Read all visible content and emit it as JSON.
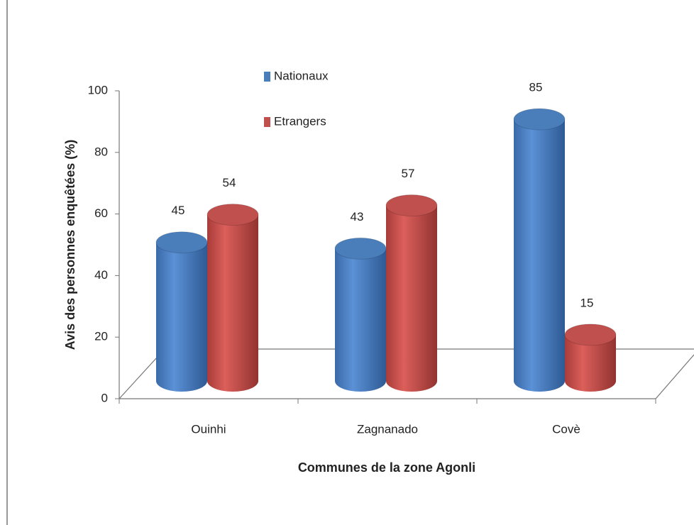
{
  "chart_data": {
    "type": "bar",
    "y_label": "Avis des personnes enquêtées (%)",
    "x_label": "Communes de la zone Agonli",
    "categories": [
      "Ouinhi",
      "Zagnanado",
      "Covè"
    ],
    "series": [
      {
        "name": "Nationaux",
        "color": "#4a7ebb",
        "values": [
          45,
          43,
          85
        ]
      },
      {
        "name": "Etrangers",
        "color": "#c0504d",
        "values": [
          54,
          57,
          15
        ]
      }
    ],
    "ylim": [
      0,
      100
    ],
    "yticks": [
      0,
      20,
      40,
      60,
      80,
      100
    ]
  }
}
